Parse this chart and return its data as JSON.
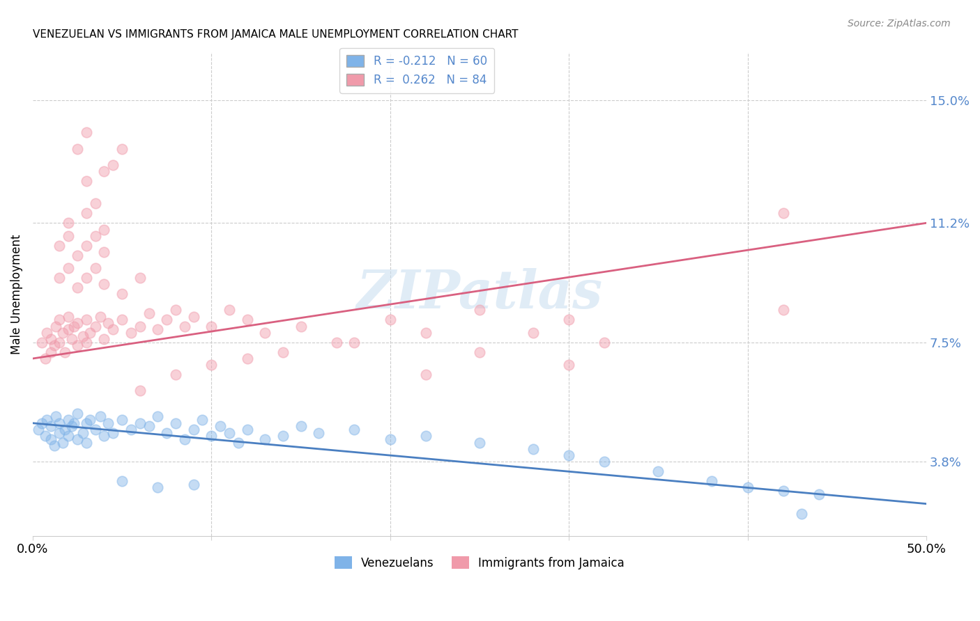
{
  "title": "VENEZUELAN VS IMMIGRANTS FROM JAMAICA MALE UNEMPLOYMENT CORRELATION CHART",
  "source": "Source: ZipAtlas.com",
  "ylabel": "Male Unemployment",
  "yticks": [
    3.8,
    7.5,
    11.2,
    15.0
  ],
  "ytick_labels": [
    "3.8%",
    "7.5%",
    "11.2%",
    "15.0%"
  ],
  "xmin": 0.0,
  "xmax": 50.0,
  "ymin": 1.5,
  "ymax": 16.5,
  "venezuelan_color": "#7fb3e8",
  "jamaica_color": "#f09aaa",
  "trend_venezuelan_color": "#4a7fc1",
  "trend_jamaica_color": "#d96080",
  "watermark": "ZIPatlas",
  "ven_trend_y0": 5.0,
  "ven_trend_y1": 2.5,
  "jam_trend_y0": 7.0,
  "jam_trend_y1": 11.2,
  "venezuelan_points": [
    [
      0.3,
      4.8
    ],
    [
      0.5,
      5.0
    ],
    [
      0.7,
      4.6
    ],
    [
      0.8,
      5.1
    ],
    [
      1.0,
      4.5
    ],
    [
      1.0,
      4.9
    ],
    [
      1.2,
      4.3
    ],
    [
      1.3,
      5.2
    ],
    [
      1.5,
      4.7
    ],
    [
      1.5,
      5.0
    ],
    [
      1.7,
      4.4
    ],
    [
      1.8,
      4.8
    ],
    [
      2.0,
      5.1
    ],
    [
      2.0,
      4.6
    ],
    [
      2.2,
      4.9
    ],
    [
      2.3,
      5.0
    ],
    [
      2.5,
      4.5
    ],
    [
      2.5,
      5.3
    ],
    [
      2.8,
      4.7
    ],
    [
      3.0,
      5.0
    ],
    [
      3.0,
      4.4
    ],
    [
      3.2,
      5.1
    ],
    [
      3.5,
      4.8
    ],
    [
      3.8,
      5.2
    ],
    [
      4.0,
      4.6
    ],
    [
      4.2,
      5.0
    ],
    [
      4.5,
      4.7
    ],
    [
      5.0,
      5.1
    ],
    [
      5.5,
      4.8
    ],
    [
      6.0,
      5.0
    ],
    [
      6.5,
      4.9
    ],
    [
      7.0,
      5.2
    ],
    [
      7.5,
      4.7
    ],
    [
      8.0,
      5.0
    ],
    [
      8.5,
      4.5
    ],
    [
      9.0,
      4.8
    ],
    [
      9.5,
      5.1
    ],
    [
      10.0,
      4.6
    ],
    [
      10.5,
      4.9
    ],
    [
      11.0,
      4.7
    ],
    [
      11.5,
      4.4
    ],
    [
      12.0,
      4.8
    ],
    [
      13.0,
      4.5
    ],
    [
      14.0,
      4.6
    ],
    [
      15.0,
      4.9
    ],
    [
      16.0,
      4.7
    ],
    [
      18.0,
      4.8
    ],
    [
      20.0,
      4.5
    ],
    [
      22.0,
      4.6
    ],
    [
      25.0,
      4.4
    ],
    [
      28.0,
      4.2
    ],
    [
      30.0,
      4.0
    ],
    [
      32.0,
      3.8
    ],
    [
      35.0,
      3.5
    ],
    [
      38.0,
      3.2
    ],
    [
      40.0,
      3.0
    ],
    [
      42.0,
      2.9
    ],
    [
      44.0,
      2.8
    ],
    [
      5.0,
      3.2
    ],
    [
      7.0,
      3.0
    ],
    [
      9.0,
      3.1
    ],
    [
      43.0,
      2.2
    ]
  ],
  "jamaica_points": [
    [
      0.5,
      7.5
    ],
    [
      0.7,
      7.0
    ],
    [
      0.8,
      7.8
    ],
    [
      1.0,
      7.2
    ],
    [
      1.0,
      7.6
    ],
    [
      1.2,
      7.4
    ],
    [
      1.3,
      8.0
    ],
    [
      1.5,
      7.5
    ],
    [
      1.5,
      8.2
    ],
    [
      1.7,
      7.8
    ],
    [
      1.8,
      7.2
    ],
    [
      2.0,
      7.9
    ],
    [
      2.0,
      8.3
    ],
    [
      2.2,
      7.6
    ],
    [
      2.3,
      8.0
    ],
    [
      2.5,
      7.4
    ],
    [
      2.5,
      8.1
    ],
    [
      2.8,
      7.7
    ],
    [
      3.0,
      7.5
    ],
    [
      3.0,
      8.2
    ],
    [
      3.2,
      7.8
    ],
    [
      3.5,
      8.0
    ],
    [
      3.8,
      8.3
    ],
    [
      4.0,
      7.6
    ],
    [
      4.2,
      8.1
    ],
    [
      4.5,
      7.9
    ],
    [
      5.0,
      8.2
    ],
    [
      5.5,
      7.8
    ],
    [
      6.0,
      8.0
    ],
    [
      6.5,
      8.4
    ],
    [
      7.0,
      7.9
    ],
    [
      7.5,
      8.2
    ],
    [
      8.0,
      8.5
    ],
    [
      8.5,
      8.0
    ],
    [
      9.0,
      8.3
    ],
    [
      10.0,
      8.0
    ],
    [
      11.0,
      8.5
    ],
    [
      12.0,
      8.2
    ],
    [
      13.0,
      7.8
    ],
    [
      15.0,
      8.0
    ],
    [
      17.0,
      7.5
    ],
    [
      20.0,
      8.2
    ],
    [
      22.0,
      7.8
    ],
    [
      25.0,
      8.5
    ],
    [
      28.0,
      7.8
    ],
    [
      30.0,
      8.2
    ],
    [
      32.0,
      7.5
    ],
    [
      42.0,
      8.5
    ],
    [
      1.5,
      9.5
    ],
    [
      2.0,
      9.8
    ],
    [
      2.5,
      9.2
    ],
    [
      3.0,
      9.5
    ],
    [
      3.5,
      9.8
    ],
    [
      4.0,
      9.3
    ],
    [
      5.0,
      9.0
    ],
    [
      6.0,
      9.5
    ],
    [
      1.5,
      10.5
    ],
    [
      2.0,
      10.8
    ],
    [
      2.5,
      10.2
    ],
    [
      3.0,
      10.5
    ],
    [
      3.5,
      10.8
    ],
    [
      4.0,
      10.3
    ],
    [
      2.0,
      11.2
    ],
    [
      3.0,
      11.5
    ],
    [
      3.5,
      11.8
    ],
    [
      4.0,
      11.0
    ],
    [
      3.0,
      12.5
    ],
    [
      4.0,
      12.8
    ],
    [
      4.5,
      13.0
    ],
    [
      5.0,
      13.5
    ],
    [
      2.5,
      13.5
    ],
    [
      3.0,
      14.0
    ],
    [
      6.0,
      6.0
    ],
    [
      8.0,
      6.5
    ],
    [
      10.0,
      6.8
    ],
    [
      12.0,
      7.0
    ],
    [
      14.0,
      7.2
    ],
    [
      18.0,
      7.5
    ],
    [
      22.0,
      6.5
    ],
    [
      25.0,
      7.2
    ],
    [
      30.0,
      6.8
    ],
    [
      42.0,
      11.5
    ]
  ]
}
